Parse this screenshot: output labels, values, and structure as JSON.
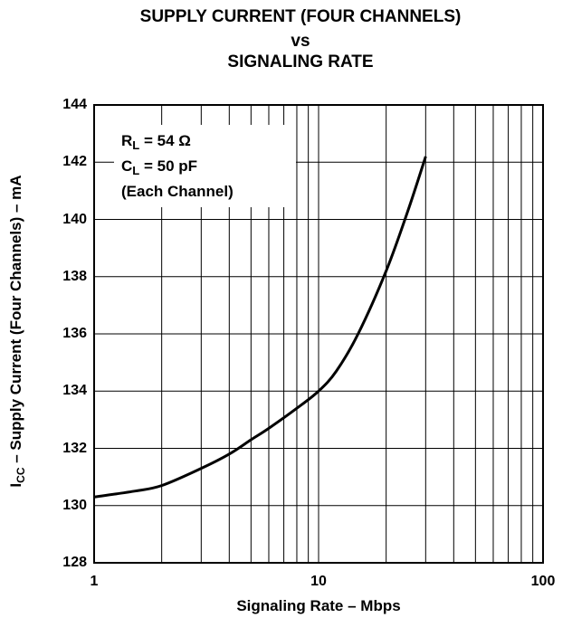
{
  "chart_data": {
    "type": "line",
    "title_lines": [
      "SUPPLY CURRENT (FOUR CHANNELS)",
      "vs",
      "SIGNALING RATE"
    ],
    "xlabel": "Signaling Rate – Mbps",
    "ylabel": {
      "main": "I",
      "sub": "CC",
      "rest": " – Supply Current (Four Channels) – mA"
    },
    "xscale": "log",
    "xlim": [
      1,
      100
    ],
    "ylim": [
      128,
      144
    ],
    "x_ticks": [
      1,
      10,
      100
    ],
    "x_tick_labels": [
      "1",
      "10",
      "100"
    ],
    "y_ticks": [
      128,
      130,
      132,
      134,
      136,
      138,
      140,
      142,
      144
    ],
    "y_tick_labels": [
      "128",
      "130",
      "132",
      "134",
      "136",
      "138",
      "140",
      "142",
      "144"
    ],
    "grid": true,
    "legend_placement": "top-left",
    "annotation": [
      {
        "main": "R",
        "sub": "L",
        "rest": " = 54 Ω"
      },
      {
        "main": "C",
        "sub": "L",
        "rest": " = 50 pF"
      },
      {
        "main": "(Each Channel)",
        "sub": "",
        "rest": ""
      }
    ],
    "series": [
      {
        "x": [
          1,
          1.5,
          2,
          3,
          4,
          5,
          6,
          8,
          10,
          12,
          15,
          20,
          25,
          30
        ],
        "y": [
          130.3,
          130.5,
          130.7,
          131.3,
          131.8,
          132.3,
          132.7,
          133.4,
          134.0,
          134.7,
          136.0,
          138.2,
          140.3,
          142.2
        ]
      }
    ],
    "line_color": "#000000"
  }
}
